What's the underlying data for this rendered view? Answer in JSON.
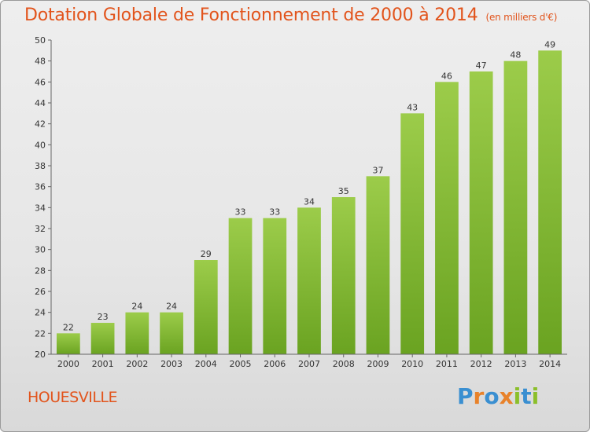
{
  "chart_data": {
    "type": "bar",
    "title": "Dotation Globale de Fonctionnement de 2000 à 2014",
    "subtitle": "(en milliers d'€)",
    "categories": [
      "2000",
      "2001",
      "2002",
      "2003",
      "2004",
      "2005",
      "2006",
      "2007",
      "2008",
      "2009",
      "2010",
      "2011",
      "2012",
      "2013",
      "2014"
    ],
    "values": [
      22,
      23,
      24,
      24,
      29,
      33,
      33,
      34,
      35,
      37,
      43,
      46,
      47,
      48,
      49
    ],
    "ylim": [
      20,
      50
    ],
    "yticks": [
      20,
      22,
      24,
      26,
      28,
      30,
      32,
      34,
      36,
      38,
      40,
      42,
      44,
      46,
      48,
      50
    ],
    "grid": false,
    "colors": {
      "bar_top": "#9ccc4a",
      "bar_bottom": "#6aa321",
      "title": "#e2541c"
    }
  },
  "footer": {
    "commune": "HOUESVILLE",
    "logo_letters": [
      "P",
      "r",
      "o",
      "x",
      "i",
      "t",
      "i"
    ],
    "logo_colors": [
      "#3a8fd1",
      "#e8822a",
      "#3a8fd1",
      "#e8822a",
      "#8bbf2a",
      "#3a8fd1",
      "#8bbf2a"
    ]
  }
}
